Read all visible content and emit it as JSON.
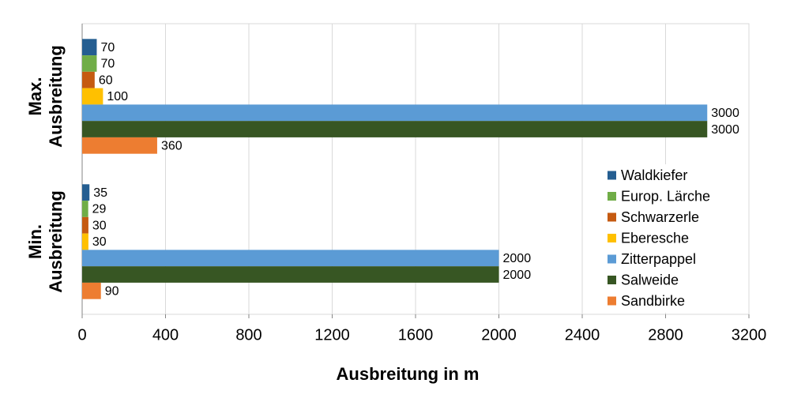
{
  "chart_data": {
    "type": "hbar",
    "categories": [
      "Max. Ausbreitung",
      "Min. Ausbreitung"
    ],
    "x_label": "Ausbreitung in m",
    "series": [
      {
        "name": "Waldkiefer",
        "color": "#255e91",
        "values": [
          70,
          35
        ]
      },
      {
        "name": "Europ. Lärche",
        "color": "#70ad47",
        "values": [
          70,
          29
        ]
      },
      {
        "name": "Schwarzerle",
        "color": "#c55a11",
        "values": [
          60,
          30
        ]
      },
      {
        "name": "Eberesche",
        "color": "#ffc000",
        "values": [
          100,
          30
        ]
      },
      {
        "name": "Zitterpappel",
        "color": "#5b9bd5",
        "values": [
          3000,
          2000
        ]
      },
      {
        "name": "Salweide",
        "color": "#375623",
        "values": [
          3000,
          2000
        ]
      },
      {
        "name": "Sandbirke",
        "color": "#ed7d31",
        "values": [
          360,
          90
        ]
      }
    ],
    "xlim": [
      0,
      3200
    ],
    "xticks": [
      0,
      400,
      800,
      1200,
      1600,
      2000,
      2400,
      2800,
      3200
    ],
    "grid": true,
    "legend": "right"
  }
}
